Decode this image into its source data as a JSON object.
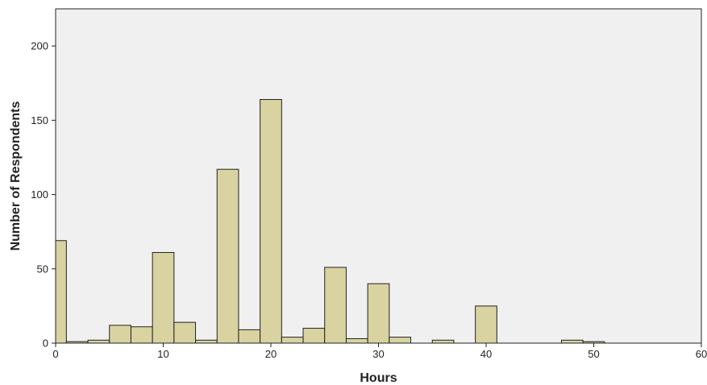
{
  "chart_data": {
    "type": "bar",
    "title": "",
    "xlabel": "Hours",
    "ylabel": "Number of Respondents",
    "xlim": [
      0,
      60
    ],
    "ylim": [
      0,
      225
    ],
    "x_ticks": [
      0,
      10,
      20,
      30,
      40,
      50,
      60
    ],
    "y_ticks": [
      0,
      50,
      100,
      150,
      200
    ],
    "bin_width": 2,
    "grid": false,
    "legend": "none",
    "colors": {
      "bar_fill": "#d8d3a0",
      "bar_stroke": "#222222",
      "plot_background": "#f0f0f0",
      "axis": "#222222"
    },
    "bins": [
      {
        "x0": 0,
        "x1": 1,
        "value": 69
      },
      {
        "x0": 1,
        "x1": 3,
        "value": 1
      },
      {
        "x0": 3,
        "x1": 5,
        "value": 2
      },
      {
        "x0": 5,
        "x1": 7,
        "value": 12
      },
      {
        "x0": 7,
        "x1": 9,
        "value": 11
      },
      {
        "x0": 9,
        "x1": 11,
        "value": 61
      },
      {
        "x0": 11,
        "x1": 13,
        "value": 14
      },
      {
        "x0": 13,
        "x1": 15,
        "value": 2
      },
      {
        "x0": 15,
        "x1": 17,
        "value": 117
      },
      {
        "x0": 17,
        "x1": 19,
        "value": 9
      },
      {
        "x0": 19,
        "x1": 21,
        "value": 164
      },
      {
        "x0": 21,
        "x1": 23,
        "value": 4
      },
      {
        "x0": 23,
        "x1": 25,
        "value": 10
      },
      {
        "x0": 25,
        "x1": 27,
        "value": 51
      },
      {
        "x0": 27,
        "x1": 29,
        "value": 3
      },
      {
        "x0": 29,
        "x1": 31,
        "value": 40
      },
      {
        "x0": 31,
        "x1": 33,
        "value": 4
      },
      {
        "x0": 35,
        "x1": 37,
        "value": 2
      },
      {
        "x0": 39,
        "x1": 41,
        "value": 25
      },
      {
        "x0": 47,
        "x1": 49,
        "value": 2
      },
      {
        "x0": 49,
        "x1": 51,
        "value": 1
      }
    ]
  }
}
